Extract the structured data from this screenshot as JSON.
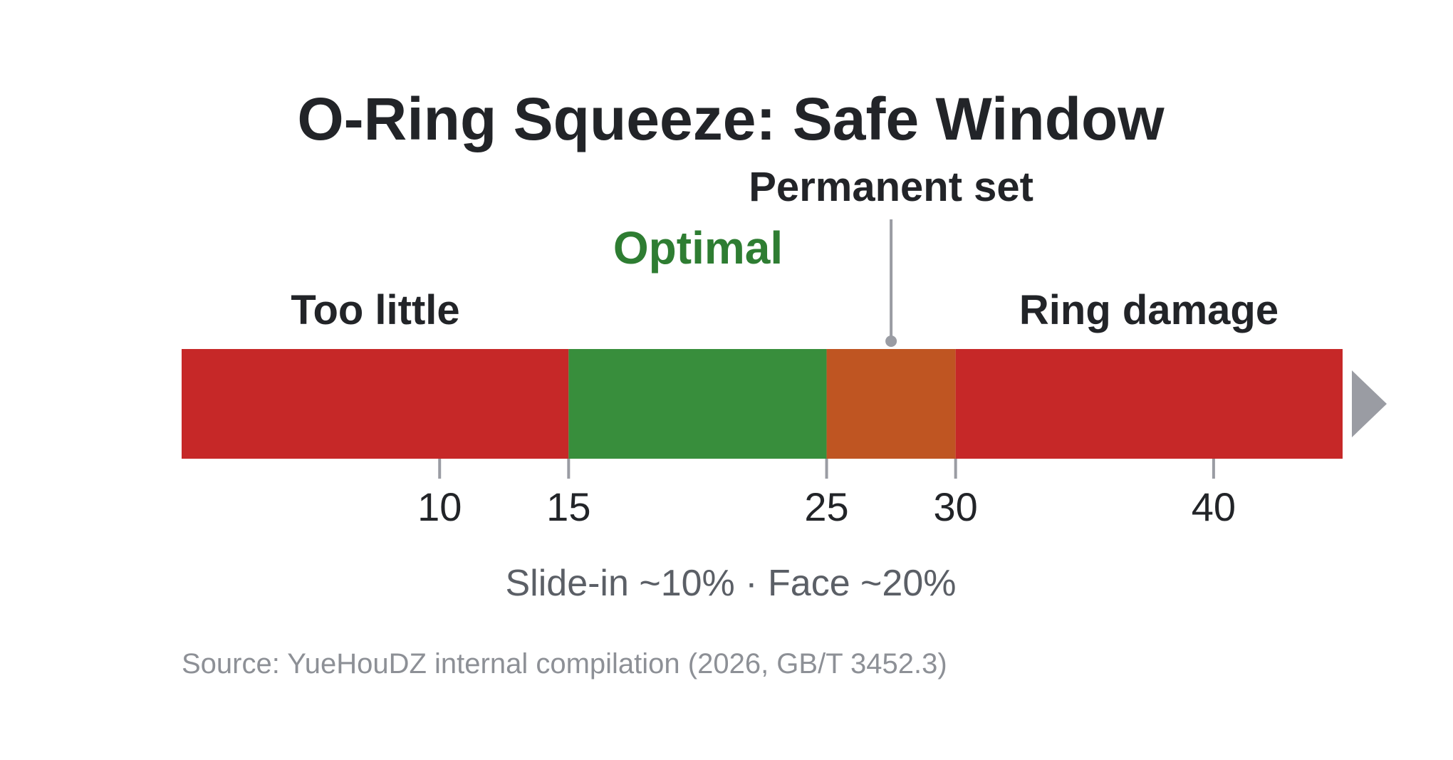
{
  "title": "O-Ring Squeeze: Safe Window",
  "axis": {
    "min": 0,
    "max": 45,
    "ticks": [
      10,
      15,
      25,
      30,
      40
    ],
    "arrow_color": "#9a9ca3",
    "tick_color": "#9a9ca3"
  },
  "segments": [
    {
      "from": 0,
      "to": 15,
      "color": "#c62828"
    },
    {
      "from": 15,
      "to": 25,
      "color": "#388e3c"
    },
    {
      "from": 25,
      "to": 30,
      "color": "#bf5522"
    },
    {
      "from": 30,
      "to": 45,
      "color": "#c62828"
    }
  ],
  "zone_labels": {
    "too_little": "Too little",
    "optimal": "Optimal",
    "ring_damage": "Ring damage"
  },
  "optimal_color": "#2e7d32",
  "callout": {
    "label": "Permanent set",
    "value": 27.5,
    "line_color": "#9a9ca3"
  },
  "note": "Slide-in ~10% · Face ~20%",
  "source": "Source: YueHouDZ internal compilation (2026, GB/T 3452.3)"
}
